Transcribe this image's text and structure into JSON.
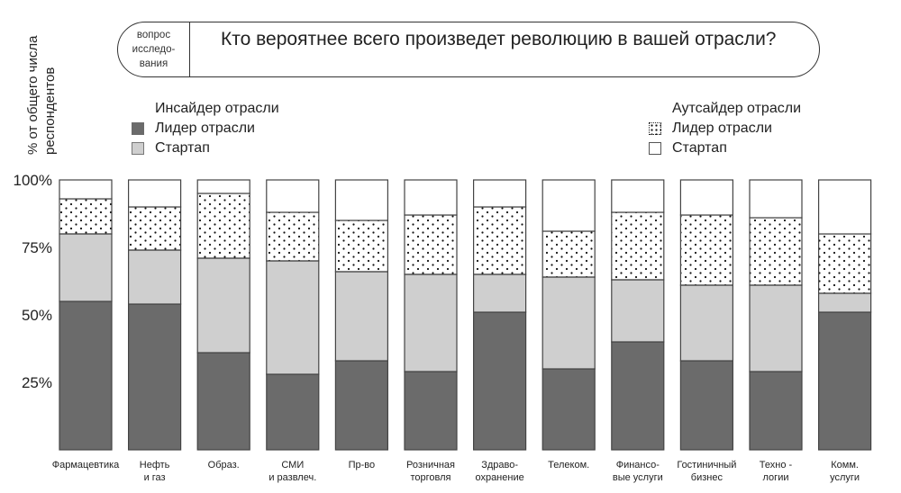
{
  "question": {
    "tag_lines": [
      "вопрос",
      "исследо-",
      "вания"
    ],
    "text": "Кто вероятнее всего произведет революцию в   вашей отрасли?"
  },
  "y_axis_title": [
    "% от общего числа",
    "респондентов"
  ],
  "legend": {
    "insider": {
      "heading": "Инсайдер отрасли",
      "leader": "Лидер отрасли",
      "startup": "Стартап"
    },
    "outsider": {
      "heading": "Аутсайдер отрасли",
      "leader": "Лидер отрасли",
      "startup": "Стартап"
    }
  },
  "colors": {
    "insider_leader": "#6b6b6b",
    "insider_startup": "#cfcfcf",
    "outsider_leader": "#ffffff",
    "outsider_startup": "#ffffff",
    "outline": "#444444",
    "dots": "#111111"
  },
  "chart_data": {
    "type": "bar",
    "stacked": true,
    "ylim": [
      0,
      100
    ],
    "yticks": [
      {
        "value": 25,
        "label": "25%"
      },
      {
        "value": 50,
        "label": "50%"
      },
      {
        "value": 75,
        "label": "75%"
      },
      {
        "value": 100,
        "label": "100%"
      }
    ],
    "grid": false,
    "categories": [
      [
        "Фармацевтика"
      ],
      [
        "Нефть",
        "и газ"
      ],
      [
        "Образ."
      ],
      [
        "СМИ",
        "и развлеч."
      ],
      [
        "Пр-во"
      ],
      [
        "Розничная",
        "торговля"
      ],
      [
        "Здраво-",
        "охранение"
      ],
      [
        "Телеком."
      ],
      [
        "Финансо-",
        "вые услуги"
      ],
      [
        "Гостиничный",
        "бизнес"
      ],
      [
        "Техно -",
        "логии"
      ],
      [
        "Комм.",
        "услуги"
      ]
    ],
    "series": [
      {
        "name": "Инсайдер отрасли: Лидер отрасли",
        "values": [
          55,
          54,
          36,
          28,
          33,
          29,
          51,
          30,
          40,
          33,
          29,
          51
        ]
      },
      {
        "name": "Инсайдер отрасли: Стартап",
        "values": [
          25,
          20,
          35,
          42,
          33,
          36,
          14,
          34,
          23,
          28,
          32,
          7
        ]
      },
      {
        "name": "Аутсайдер отрасли: Лидер отрасли",
        "values": [
          13,
          16,
          24,
          18,
          19,
          22,
          25,
          17,
          25,
          26,
          25,
          22
        ]
      },
      {
        "name": "Аутсайдер отрасли: Стартап",
        "values": [
          7,
          10,
          5,
          12,
          15,
          13,
          10,
          19,
          12,
          13,
          14,
          20
        ]
      }
    ]
  }
}
